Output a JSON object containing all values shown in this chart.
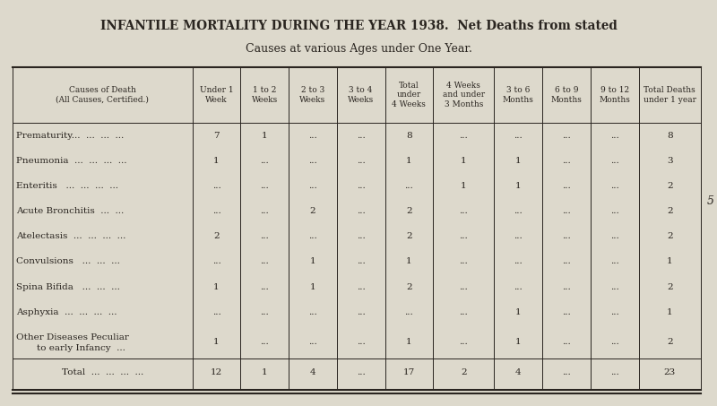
{
  "title_line1": "INFANTILE MORTALITY DURING THE YEAR 1938.  Net Deaths from stated",
  "title_line2": "Causes at various Ages under One Year.",
  "bg_color": "#ddd9cc",
  "col_headers": [
    "Causes of Death\n(All Causes, Certified.)",
    "Under 1\nWeek",
    "1 to 2\nWeeks",
    "2 to 3\nWeeks",
    "3 to 4\nWeeks",
    "Total\nunder\n4 Weeks",
    "4 Weeks\nand under\n3 Months",
    "3 to 6\nMonths",
    "6 to 9\nMonths",
    "9 to 12\nMonths",
    "Total Deaths\nunder 1 year"
  ],
  "rows": [
    [
      "Prematurity...  ...  ...  ...",
      "7",
      "1",
      "...",
      "...",
      "8",
      "...",
      "...",
      "...",
      "...",
      "8"
    ],
    [
      "Pneumonia  ...  ...  ...  ...",
      "1",
      "...",
      "...",
      "...",
      "1",
      "1",
      "1",
      "...",
      "...",
      "3"
    ],
    [
      "Enteritis   ...  ...  ...  ...",
      "...",
      "...",
      "...",
      "...",
      "...",
      "1",
      "1",
      "...",
      "...",
      "2"
    ],
    [
      "Acute Bronchitis  ...  ...",
      "...",
      "...",
      "2",
      "...",
      "2",
      "...",
      "...",
      "...",
      "...",
      "2"
    ],
    [
      "Atelectasis  ...  ...  ...  ...",
      "2",
      "...",
      "...",
      "...",
      "2",
      "...",
      "...",
      "...",
      "...",
      "2"
    ],
    [
      "Convulsions   ...  ...  ...",
      "...",
      "...",
      "1",
      "...",
      "1",
      "...",
      "...",
      "...",
      "...",
      "1"
    ],
    [
      "Spina Bifida   ...  ...  ...",
      "1",
      "...",
      "1",
      "...",
      "2",
      "...",
      "...",
      "...",
      "...",
      "2"
    ],
    [
      "Asphyxia  ...  ...  ...  ...",
      "...",
      "...",
      "...",
      "...",
      "...",
      "...",
      "1",
      "...",
      "...",
      "1"
    ],
    [
      "Other Diseases Peculiar",
      "1",
      "...",
      "...",
      "...",
      "1",
      "...",
      "1",
      "...",
      "...",
      "2"
    ],
    [
      "Total  ...  ...  ...  ...",
      "12",
      "1",
      "4",
      "...",
      "17",
      "2",
      "4",
      "...",
      "...",
      "23"
    ]
  ],
  "other_line2": "    to early Infancy  ...",
  "side_label": "5",
  "col_widths_rel": [
    2.8,
    0.75,
    0.75,
    0.75,
    0.75,
    0.75,
    0.95,
    0.75,
    0.75,
    0.75,
    0.97
  ],
  "text_color": "#2a2520",
  "header_fontsize": 6.5,
  "cell_fontsize": 7.5,
  "title_fontsize1": 9.8,
  "title_fontsize2": 9.0
}
